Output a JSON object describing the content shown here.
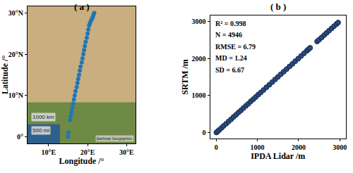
{
  "chart_data": [
    {
      "type": "scatter",
      "title": "( a )",
      "xlabel": "Longitude /°",
      "ylabel": "Latitude /°",
      "x": [
        15.0,
        15.1,
        15.5,
        15.7,
        15.9,
        16.1,
        16.3,
        16.5,
        16.7,
        16.9,
        17.2,
        17.4,
        17.6,
        17.8,
        18.0,
        18.2,
        18.5,
        18.7,
        18.9,
        19.1,
        19.3,
        19.5,
        19.8,
        20.0,
        20.2,
        20.4,
        20.6,
        20.8,
        21.1,
        21.3,
        21.5,
        21.7
      ],
      "values": [
        0,
        1,
        4,
        5,
        6,
        7,
        8,
        9,
        10,
        11,
        12,
        13,
        14,
        15,
        16,
        17,
        18,
        19,
        20,
        21,
        22,
        23,
        24,
        25,
        26,
        27,
        27.5,
        28,
        28.5,
        29,
        29.5,
        30
      ],
      "color": "#1f77b4",
      "marker": "circle",
      "xlim": [
        4.6,
        32.3
      ],
      "ylim": [
        -1.7,
        31.7
      ],
      "xticks": [
        {
          "value": 10,
          "label": "10°E"
        },
        {
          "value": 20,
          "label": "20°E"
        },
        {
          "value": 30,
          "label": "30°E"
        }
      ],
      "yticks": [
        {
          "value": 0,
          "label": "0°"
        },
        {
          "value": 10,
          "label": "10°N"
        },
        {
          "value": 20,
          "label": "20°N"
        },
        {
          "value": 30,
          "label": "30°N"
        }
      ],
      "grid": false,
      "annotations": [
        "1000 km",
        "500 mi",
        "Earthstar Geographics"
      ]
    },
    {
      "type": "scatter",
      "title": "( b )",
      "xlabel": "IPDA Lidar /m",
      "ylabel": "SRTM /m",
      "x": [
        5,
        40,
        80,
        130,
        180,
        240,
        300,
        360,
        420,
        480,
        540,
        600,
        660,
        720,
        780,
        840,
        900,
        960,
        1020,
        1080,
        1150,
        1220,
        1290,
        1360,
        1430,
        1500,
        1570,
        1640,
        1710,
        1780,
        1850,
        1920,
        1990,
        2060,
        2130,
        2200,
        2240,
        2280,
        2450,
        2500,
        2560,
        2620,
        2680,
        2740,
        2800,
        2860,
        2920,
        2960
      ],
      "values": [
        8,
        45,
        84,
        133,
        186,
        243,
        304,
        362,
        425,
        483,
        546,
        602,
        665,
        724,
        781,
        846,
        903,
        962,
        1026,
        1083,
        1152,
        1224,
        1293,
        1362,
        1435,
        1502,
        1574,
        1643,
        1712,
        1785,
        1851,
        1924,
        1993,
        2062,
        2134,
        2203,
        2245,
        2283,
        2455,
        2503,
        2562,
        2624,
        2683,
        2745,
        2803,
        2864,
        2923,
        2962
      ],
      "color": "#2b4a7e",
      "marker": "circle",
      "xlim": [
        -150,
        3150
      ],
      "ylim": [
        -150,
        3150
      ],
      "xticks": [
        0,
        1000,
        2000,
        3000
      ],
      "yticks": [
        0,
        1000,
        2000,
        3000
      ],
      "grid": false,
      "annotations": [
        "R² = 0.998",
        "N = 4946",
        "RMSE = 6.79",
        "MD = 1.24",
        "SD = 6.67"
      ]
    }
  ]
}
